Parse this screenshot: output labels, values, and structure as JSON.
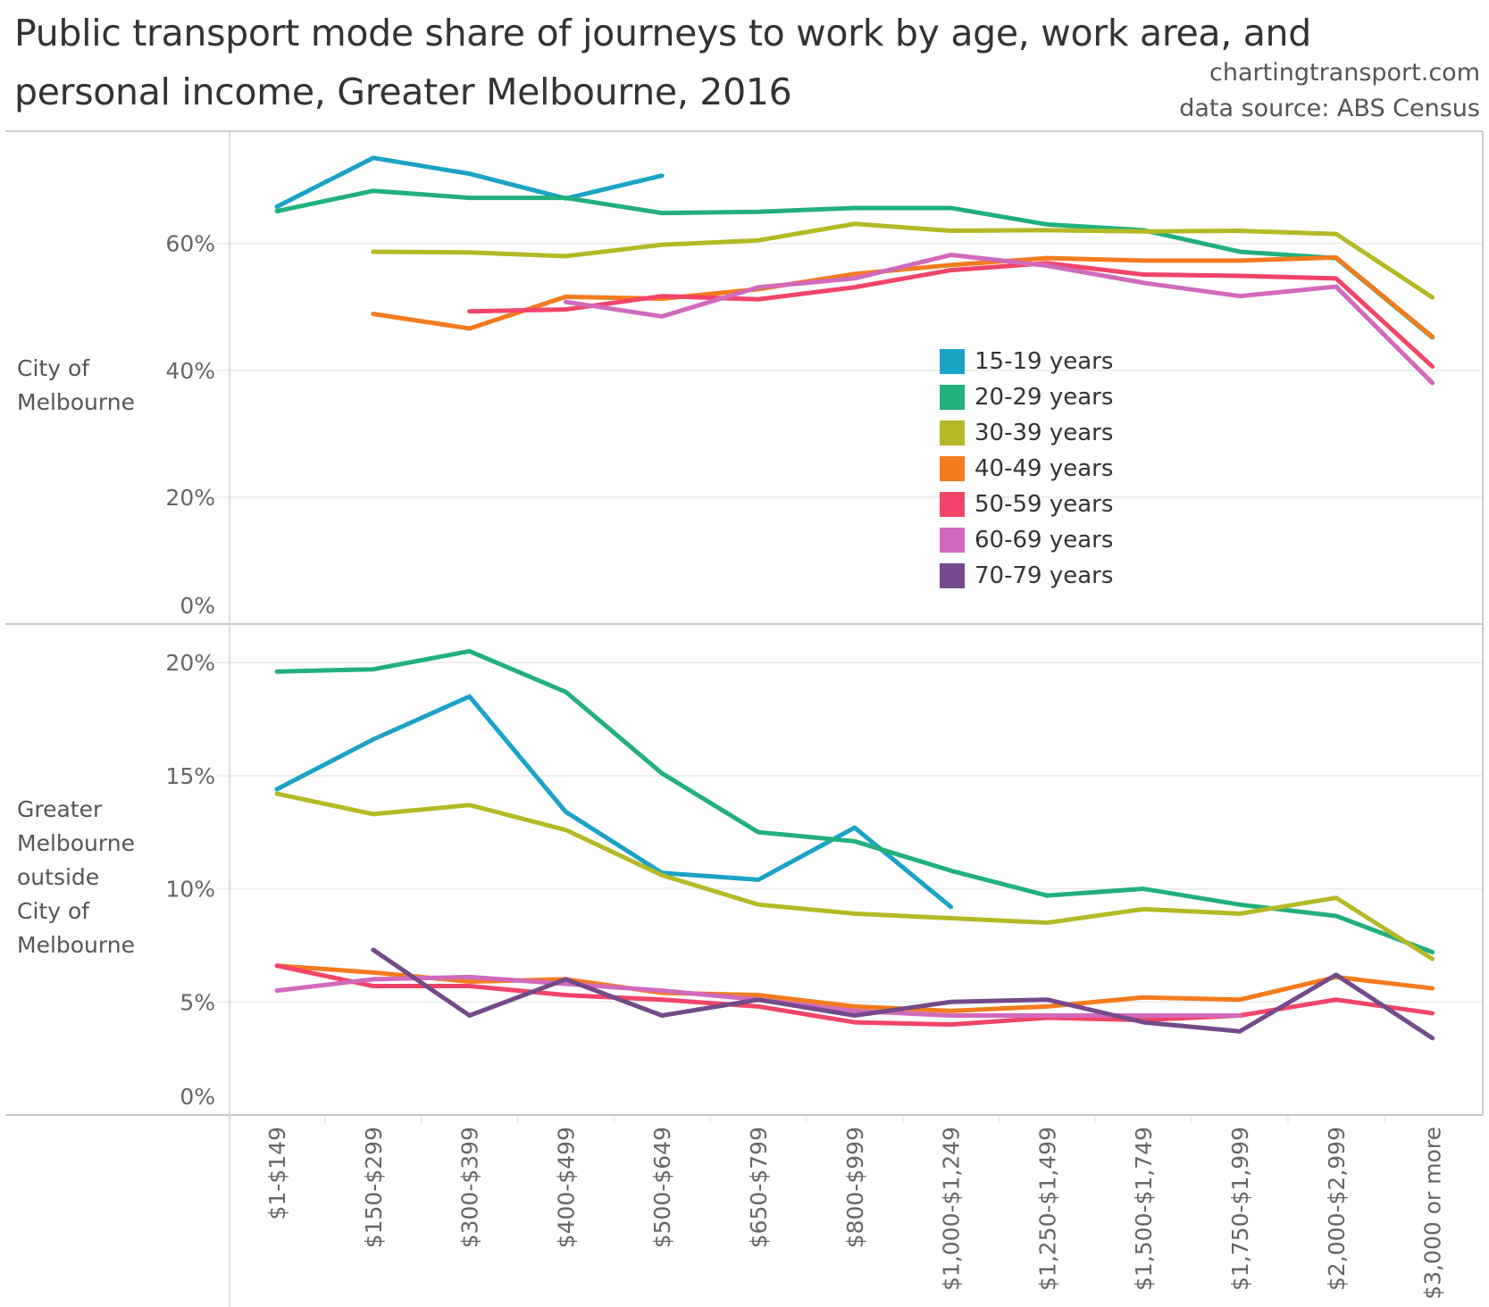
{
  "title": "Public transport mode share of journeys to work by age, work area, and personal income, Greater Melbourne, 2016",
  "credits": [
    "chartingtransport.com",
    "data source: ABS Census"
  ],
  "chart_data": {
    "type": "line",
    "title": "Public transport mode share of journeys to work by age, work area, and personal income, Greater Melbourne, 2016",
    "xlabel": "",
    "ylabel": "",
    "grid": true,
    "legend_position": "inside-center-right (top panel)",
    "categories": [
      "$1-$149",
      "$150-$299",
      "$300-$399",
      "$400-$499",
      "$500-$649",
      "$650-$799",
      "$800-$999",
      "$1,000-$1,249",
      "$1,250-$1,499",
      "$1,500-$1,749",
      "$1,750-$1,999",
      "$2,000-$2,999",
      "$3,000 or more"
    ],
    "legend": [
      {
        "name": "15-19 years",
        "color": "#1ba3c6"
      },
      {
        "name": "20-29 years",
        "color": "#22b07d"
      },
      {
        "name": "30-39 years",
        "color": "#b4b925"
      },
      {
        "name": "40-49 years",
        "color": "#f47b1d"
      },
      {
        "name": "50-59 years",
        "color": "#f24468"
      },
      {
        "name": "60-69 years",
        "color": "#d169bc"
      },
      {
        "name": "70-79 years",
        "color": "#744a8a"
      }
    ],
    "panels": [
      {
        "row_label": [
          "City of",
          "Melbourne"
        ],
        "ylim": [
          0,
          77.7
        ],
        "yticks": [
          0,
          20,
          40,
          60
        ],
        "ytick_labels": [
          "0%",
          "20%",
          "40%",
          "60%"
        ],
        "series": [
          {
            "name": "15-19 years",
            "values": [
              65.8,
              73.5,
              71.0,
              67.1,
              70.7,
              null,
              null,
              null,
              null,
              null,
              null,
              null,
              null
            ]
          },
          {
            "name": "20-29 years",
            "values": [
              65.1,
              68.3,
              67.2,
              67.2,
              64.8,
              65.0,
              65.6,
              65.6,
              63.0,
              62.1,
              58.7,
              57.7,
              45.2
            ]
          },
          {
            "name": "30-39 years",
            "values": [
              null,
              58.7,
              58.6,
              58.0,
              59.8,
              60.5,
              63.1,
              62.0,
              62.1,
              61.9,
              62.0,
              61.5,
              51.5
            ]
          },
          {
            "name": "40-49 years",
            "values": [
              null,
              48.9,
              46.6,
              51.6,
              51.3,
              52.8,
              55.2,
              56.6,
              57.7,
              57.3,
              57.3,
              57.8,
              45.3
            ]
          },
          {
            "name": "50-59 years",
            "values": [
              null,
              null,
              49.3,
              49.6,
              51.7,
              51.2,
              53.1,
              55.8,
              56.9,
              55.1,
              54.9,
              54.5,
              40.6
            ]
          },
          {
            "name": "60-69 years",
            "values": [
              null,
              null,
              null,
              50.8,
              48.5,
              53.1,
              54.5,
              58.2,
              56.5,
              53.8,
              51.7,
              53.2,
              38.0
            ]
          },
          {
            "name": "70-79 years",
            "values": [
              null,
              null,
              null,
              null,
              null,
              null,
              null,
              null,
              null,
              null,
              null,
              null,
              null
            ]
          }
        ]
      },
      {
        "row_label": [
          "Greater",
          "Melbourne",
          "outside",
          "City of",
          "Melbourne"
        ],
        "ylim": [
          0,
          21.7
        ],
        "yticks": [
          0,
          5,
          10,
          15,
          20
        ],
        "ytick_labels": [
          "0%",
          "5%",
          "10%",
          "15%",
          "20%"
        ],
        "series": [
          {
            "name": "15-19 years",
            "values": [
              14.4,
              16.6,
              18.5,
              13.4,
              10.7,
              10.4,
              12.7,
              9.2,
              null,
              null,
              null,
              null,
              null
            ]
          },
          {
            "name": "20-29 years",
            "values": [
              19.6,
              19.7,
              20.5,
              18.7,
              15.1,
              12.5,
              12.1,
              10.8,
              9.7,
              10.0,
              9.3,
              8.8,
              7.2
            ]
          },
          {
            "name": "30-39 years",
            "values": [
              14.2,
              13.3,
              13.7,
              12.6,
              10.6,
              9.3,
              8.9,
              8.7,
              8.5,
              9.1,
              8.9,
              9.6,
              6.9
            ]
          },
          {
            "name": "40-49 years",
            "values": [
              6.6,
              6.3,
              5.9,
              6.0,
              5.4,
              5.3,
              4.8,
              4.6,
              4.8,
              5.2,
              5.1,
              6.1,
              5.6
            ]
          },
          {
            "name": "50-59 years",
            "values": [
              6.6,
              5.7,
              5.7,
              5.3,
              5.1,
              4.8,
              4.1,
              4.0,
              4.3,
              4.2,
              4.4,
              5.1,
              4.5
            ]
          },
          {
            "name": "60-69 years",
            "values": [
              5.5,
              6.0,
              6.1,
              5.8,
              5.5,
              5.1,
              4.6,
              4.4,
              4.4,
              4.4,
              4.4,
              null,
              null
            ]
          },
          {
            "name": "70-79 years",
            "values": [
              null,
              7.3,
              4.4,
              6.0,
              4.4,
              5.1,
              4.4,
              5.0,
              5.1,
              4.1,
              3.7,
              6.2,
              3.4
            ]
          }
        ]
      }
    ]
  }
}
